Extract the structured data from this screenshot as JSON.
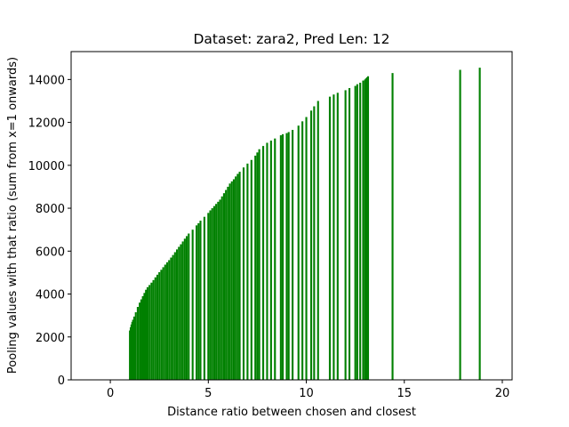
{
  "chart_data": {
    "type": "bar",
    "title": "Dataset: zara2, Pred Len: 12",
    "xlabel": "Distance ratio between chosen and closest",
    "ylabel": "Pooling values with that ratio (sum from x=1 onwards)",
    "xlim": [
      -2.0,
      20.5
    ],
    "ylim": [
      0,
      15300
    ],
    "xticks": [
      0,
      5,
      10,
      15,
      20
    ],
    "yticks": [
      0,
      2000,
      4000,
      6000,
      8000,
      10000,
      12000,
      14000
    ],
    "grid": false,
    "bar_color": "#008000",
    "x": [
      1.0,
      1.04,
      1.08,
      1.12,
      1.16,
      1.22,
      1.3,
      1.4,
      1.5,
      1.58,
      1.66,
      1.74,
      1.82,
      1.9,
      2.0,
      2.1,
      2.2,
      2.3,
      2.4,
      2.5,
      2.6,
      2.7,
      2.8,
      2.9,
      3.0,
      3.1,
      3.2,
      3.3,
      3.4,
      3.5,
      3.6,
      3.7,
      3.8,
      3.9,
      4.0,
      4.2,
      4.4,
      4.5,
      4.6,
      4.8,
      5.0,
      5.1,
      5.2,
      5.3,
      5.4,
      5.5,
      5.6,
      5.7,
      5.8,
      5.9,
      6.0,
      6.1,
      6.2,
      6.3,
      6.4,
      6.5,
      6.6,
      6.8,
      7.0,
      7.2,
      7.4,
      7.5,
      7.6,
      7.8,
      8.0,
      8.2,
      8.4,
      8.7,
      8.8,
      9.0,
      9.1,
      9.3,
      9.6,
      9.8,
      10.0,
      10.25,
      10.4,
      10.6,
      11.2,
      11.4,
      11.6,
      12.0,
      12.2,
      12.5,
      12.6,
      12.75,
      12.9,
      13.0,
      13.05,
      13.1,
      13.15,
      14.4,
      17.85,
      18.85
    ],
    "values": [
      2300,
      2450,
      2580,
      2700,
      2800,
      2950,
      3150,
      3400,
      3600,
      3750,
      3900,
      4050,
      4200,
      4320,
      4420,
      4530,
      4650,
      4780,
      4900,
      5020,
      5130,
      5250,
      5370,
      5480,
      5580,
      5700,
      5820,
      5950,
      6080,
      6200,
      6320,
      6450,
      6580,
      6700,
      6820,
      7000,
      7200,
      7300,
      7420,
      7600,
      7780,
      7900,
      8000,
      8100,
      8200,
      8300,
      8400,
      8550,
      8700,
      8850,
      9000,
      9150,
      9250,
      9350,
      9480,
      9600,
      9700,
      9900,
      10080,
      10250,
      10450,
      10600,
      10750,
      10900,
      11050,
      11150,
      11250,
      11400,
      11450,
      11500,
      11550,
      11650,
      11850,
      12050,
      12250,
      12550,
      12750,
      13000,
      13200,
      13300,
      13380,
      13500,
      13600,
      13700,
      13780,
      13850,
      13950,
      14000,
      14050,
      14100,
      14150,
      14300,
      14450,
      14550
    ]
  }
}
